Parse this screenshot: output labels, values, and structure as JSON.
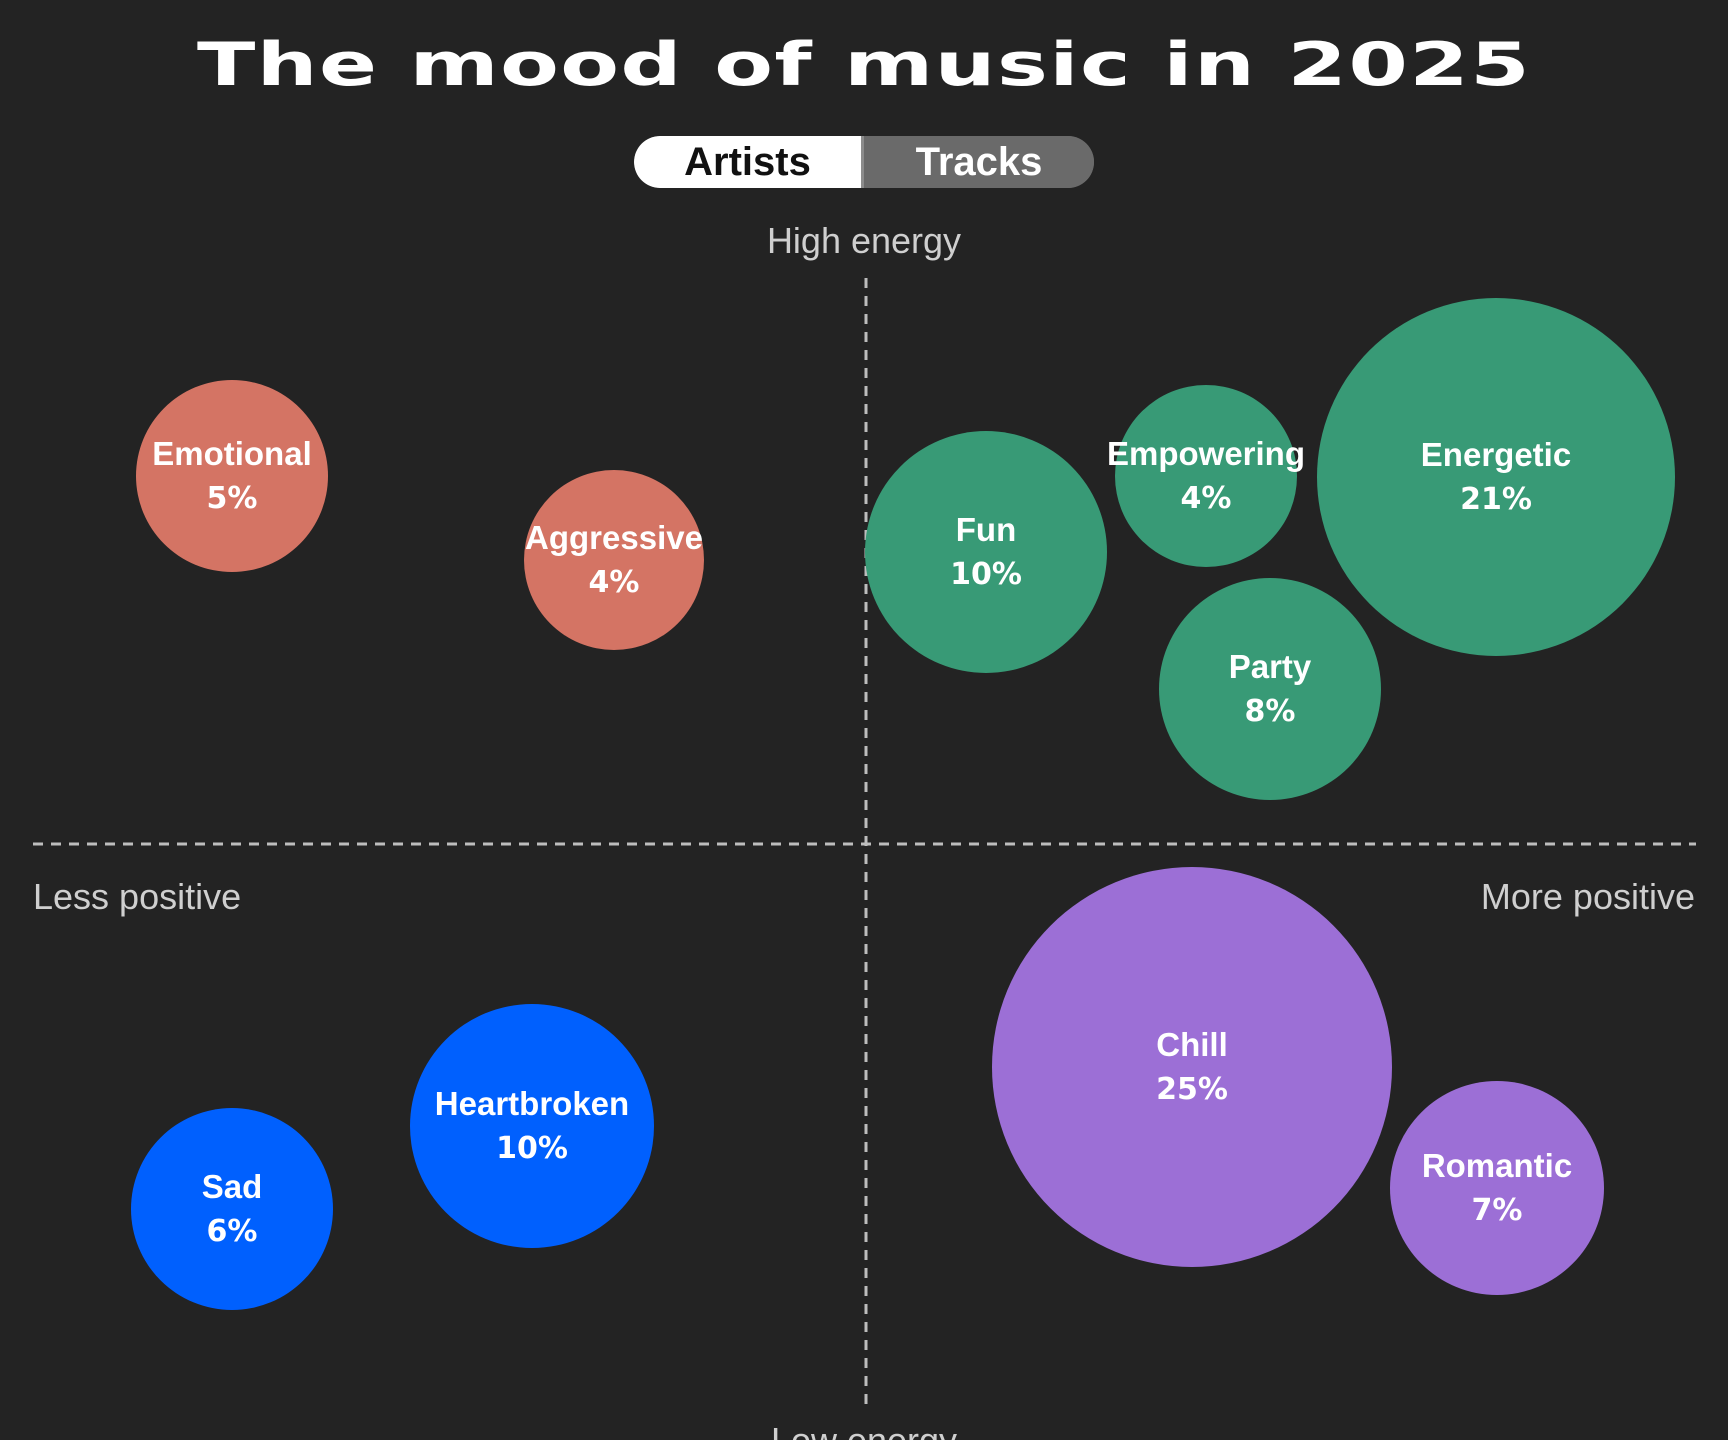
{
  "header": {
    "title": "The mood of music in 2025"
  },
  "toggle": {
    "options": [
      {
        "label": "Artists",
        "selected": true
      },
      {
        "label": "Tracks",
        "selected": false
      }
    ]
  },
  "colors": {
    "background": "#232323",
    "quadrant_high_less": "#d47464",
    "quadrant_high_more": "#389a76",
    "quadrant_low_less": "#0060fe",
    "quadrant_low_more": "#9c6fd6",
    "guide_line": "#bdbdbd"
  },
  "chart_data": {
    "type": "scatter",
    "title": "The mood of music in 2025",
    "axes": {
      "y_top": "High energy",
      "y_bottom": "Low energy",
      "x_left": "Less positive",
      "x_right": "More positive"
    },
    "grid": false,
    "value_unit": "percent",
    "points": [
      {
        "name": "Emotional",
        "value": 5,
        "value_label": "5%",
        "quadrant": "high-energy-less-positive",
        "color": "#d47464"
      },
      {
        "name": "Aggressive",
        "value": 4,
        "value_label": "4%",
        "quadrant": "high-energy-less-positive",
        "color": "#d47464"
      },
      {
        "name": "Fun",
        "value": 10,
        "value_label": "10%",
        "quadrant": "high-energy-more-positive",
        "color": "#389a76"
      },
      {
        "name": "Empowering",
        "value": 4,
        "value_label": "4%",
        "quadrant": "high-energy-more-positive",
        "color": "#389a76"
      },
      {
        "name": "Energetic",
        "value": 21,
        "value_label": "21%",
        "quadrant": "high-energy-more-positive",
        "color": "#389a76"
      },
      {
        "name": "Party",
        "value": 8,
        "value_label": "8%",
        "quadrant": "high-energy-more-positive",
        "color": "#389a76"
      },
      {
        "name": "Sad",
        "value": 6,
        "value_label": "6%",
        "quadrant": "low-energy-less-positive",
        "color": "#0060fe"
      },
      {
        "name": "Heartbroken",
        "value": 10,
        "value_label": "10%",
        "quadrant": "low-energy-less-positive",
        "color": "#0060fe"
      },
      {
        "name": "Chill",
        "value": 25,
        "value_label": "25%",
        "quadrant": "low-energy-more-positive",
        "color": "#9c6fd6"
      },
      {
        "name": "Romantic",
        "value": 7,
        "value_label": "7%",
        "quadrant": "low-energy-more-positive",
        "color": "#9c6fd6"
      }
    ]
  }
}
